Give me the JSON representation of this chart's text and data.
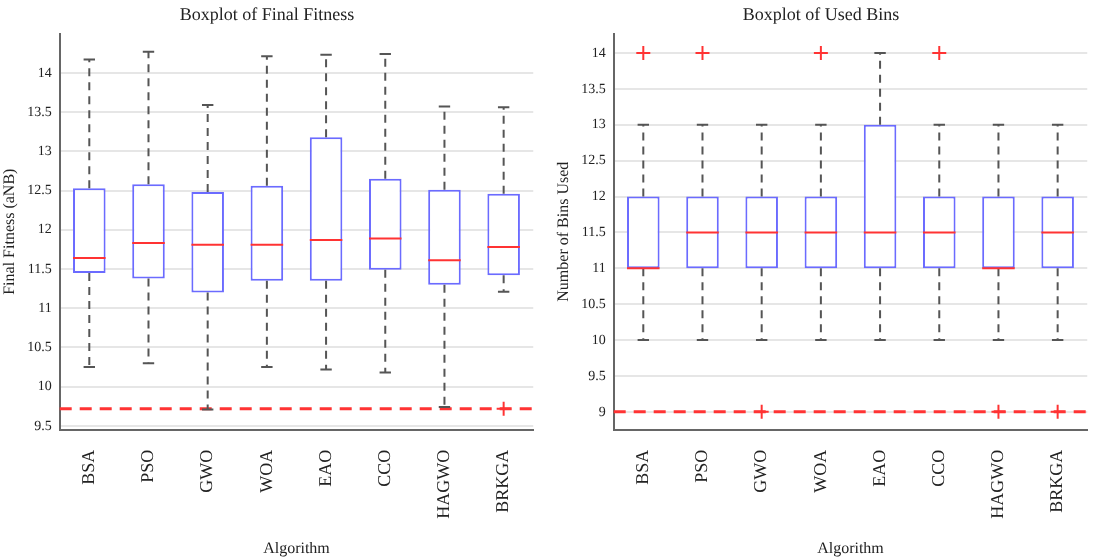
{
  "chart_data": [
    {
      "type": "box",
      "title": "Boxplot of Final Fitness",
      "xlabel": "Algorithm",
      "ylabel": "Final Fitness (aNB)",
      "categories": [
        "BSA",
        "PSO",
        "GWO",
        "WOA",
        "EAO",
        "CCO",
        "HAGWO",
        "BRKGA"
      ],
      "series": [
        {
          "color": "#6b6bff",
          "boxes": [
            {
              "low": 10.25,
              "q1": 11.45,
              "median": 11.64,
              "q3": 12.53,
              "high": 14.17
            },
            {
              "low": 10.3,
              "q1": 11.38,
              "median": 11.83,
              "q3": 12.58,
              "high": 14.27
            },
            {
              "low": 9.71,
              "q1": 11.2,
              "median": 11.81,
              "q3": 12.48,
              "high": 13.59
            },
            {
              "low": 10.25,
              "q1": 11.35,
              "median": 11.81,
              "q3": 12.56,
              "high": 14.21
            },
            {
              "low": 10.22,
              "q1": 11.35,
              "median": 11.87,
              "q3": 13.18,
              "high": 14.23
            },
            {
              "low": 10.18,
              "q1": 11.49,
              "median": 11.89,
              "q3": 12.65,
              "high": 14.24
            },
            {
              "low": 9.74,
              "q1": 11.3,
              "median": 11.61,
              "q3": 12.51,
              "high": 13.57
            },
            {
              "low": 11.21,
              "q1": 11.42,
              "median": 11.78,
              "q3": 12.46,
              "high": 13.56,
              "outliers": [
                9.72
              ]
            }
          ]
        }
      ],
      "ylim": [
        9.45,
        14.5
      ],
      "yticks": [
        9.5,
        10,
        10.5,
        11,
        11.5,
        12,
        12.5,
        13,
        13.5,
        14
      ],
      "grid": "y",
      "ref_lines": [
        {
          "axis": "y",
          "value": 9.72,
          "color": "#ff3333",
          "line_style": "dashed"
        }
      ]
    },
    {
      "type": "box",
      "title": "Boxplot of Used Bins",
      "xlabel": "Algorithm",
      "ylabel": "Number of Bins Used",
      "categories": [
        "BSA",
        "PSO",
        "GWO",
        "WOA",
        "EAO",
        "CCO",
        "HAGWO",
        "BRKGA"
      ],
      "series": [
        {
          "color": "#6b6bff",
          "boxes": [
            {
              "low": 10,
              "q1": 11,
              "median": 11,
              "q3": 12,
              "high": 13,
              "outliers": [
                14
              ]
            },
            {
              "low": 10,
              "q1": 11,
              "median": 11.5,
              "q3": 12,
              "high": 13,
              "outliers": [
                14
              ]
            },
            {
              "low": 10,
              "q1": 11,
              "median": 11.5,
              "q3": 12,
              "high": 13,
              "outliers": [
                9
              ]
            },
            {
              "low": 10,
              "q1": 11,
              "median": 11.5,
              "q3": 12,
              "high": 13,
              "outliers": [
                14
              ]
            },
            {
              "low": 10,
              "q1": 11,
              "median": 11.5,
              "q3": 13,
              "high": 14
            },
            {
              "low": 10,
              "q1": 11,
              "median": 11.5,
              "q3": 12,
              "high": 13,
              "outliers": [
                14
              ]
            },
            {
              "low": 10,
              "q1": 11,
              "median": 11,
              "q3": 12,
              "high": 13,
              "outliers": [
                9
              ]
            },
            {
              "low": 10,
              "q1": 11,
              "median": 11.5,
              "q3": 12,
              "high": 13,
              "outliers": [
                9
              ]
            }
          ]
        }
      ],
      "ylim": [
        8.75,
        14.27
      ],
      "yticks": [
        9,
        9.5,
        10,
        10.5,
        11,
        11.5,
        12,
        12.5,
        13,
        13.5,
        14
      ],
      "grid": "y",
      "ref_lines": [
        {
          "axis": "y",
          "value": 9,
          "color": "#ff3333",
          "line_style": "dashed"
        }
      ]
    }
  ]
}
